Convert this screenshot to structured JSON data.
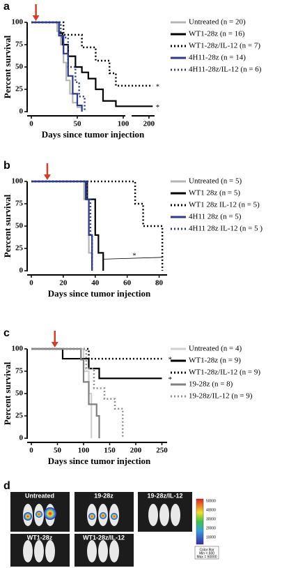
{
  "chart_data": [
    {
      "type": "line",
      "panel": "a",
      "xlabel": "Days since tumor injection",
      "ylabel": "Percent survival",
      "xlim": [
        0,
        230
      ],
      "axis_break": 100,
      "xticks": [
        0,
        50,
        100,
        200
      ],
      "ylim": [
        0,
        100
      ],
      "yticks": [
        0,
        25,
        50,
        75,
        100
      ],
      "arrow": {
        "x": 5,
        "color": "#d0402b"
      },
      "series": [
        {
          "name": "Untreated  (n = 20)",
          "color": "#b5b5b5",
          "dash": false,
          "x": [
            0,
            28,
            28,
            32,
            32,
            35,
            35,
            38,
            38,
            42,
            42,
            45,
            45,
            50,
            50,
            55,
            55
          ],
          "values": [
            100,
            100,
            90,
            90,
            75,
            75,
            55,
            55,
            35,
            35,
            20,
            20,
            10,
            10,
            5,
            5,
            0
          ]
        },
        {
          "name": "WT1-28z  (n = 16)",
          "color": "#000000",
          "dash": false,
          "x": [
            0,
            30,
            30,
            34,
            34,
            40,
            40,
            48,
            48,
            55,
            55,
            62,
            62,
            70,
            70,
            78,
            78,
            92,
            92,
            220
          ],
          "values": [
            100,
            100,
            88,
            88,
            75,
            75,
            62,
            62,
            50,
            50,
            44,
            44,
            37,
            37,
            25,
            25,
            12,
            12,
            6,
            6
          ]
        },
        {
          "name": "WT1-28z/IL-12  (n = 7)",
          "color": "#000000",
          "dash": true,
          "x": [
            0,
            35,
            35,
            55,
            55,
            70,
            70,
            85,
            85,
            92,
            92,
            220
          ],
          "values": [
            100,
            100,
            86,
            86,
            72,
            72,
            57,
            57,
            43,
            43,
            29,
            29
          ]
        },
        {
          "name": "4H11-28z  (n = 14)",
          "color": "#2b3a8c",
          "dash": false,
          "x": [
            0,
            30,
            30,
            35,
            35,
            40,
            40,
            45,
            45,
            50,
            50,
            55,
            55
          ],
          "values": [
            100,
            100,
            85,
            85,
            65,
            65,
            40,
            40,
            20,
            20,
            7,
            7,
            0
          ]
        },
        {
          "name": "4H11-28z/IL-12  (n = 6)",
          "color": "#2b3a8c",
          "dash": true,
          "x": [
            0,
            32,
            32,
            40,
            40,
            48,
            48,
            52,
            52,
            58,
            58
          ],
          "values": [
            100,
            100,
            83,
            83,
            50,
            50,
            33,
            33,
            17,
            17,
            0
          ]
        }
      ],
      "annotations": [
        {
          "text": "*",
          "x": 225,
          "y": 29
        },
        {
          "text": "*",
          "x": 225,
          "y": 6
        }
      ]
    },
    {
      "type": "line",
      "panel": "b",
      "xlabel": "Days since tumor injection",
      "ylabel": "Percent survival",
      "xlim": [
        0,
        85
      ],
      "xticks": [
        0,
        20,
        40,
        60,
        80
      ],
      "ylim": [
        0,
        100
      ],
      "yticks": [
        0,
        25,
        50,
        75,
        100
      ],
      "arrow": {
        "x": 10,
        "color": "#d0402b"
      },
      "series": [
        {
          "name": "Untreated  (n = 5)",
          "color": "#b5b5b5",
          "dash": false,
          "x": [
            0,
            33,
            33,
            36,
            36,
            38,
            38
          ],
          "values": [
            100,
            100,
            80,
            80,
            20,
            20,
            0
          ]
        },
        {
          "name": "WT1 28z  (n = 5)",
          "color": "#000000",
          "dash": false,
          "x": [
            0,
            35,
            35,
            40,
            40,
            42,
            42,
            45,
            45
          ],
          "values": [
            100,
            100,
            80,
            80,
            40,
            40,
            20,
            20,
            0
          ]
        },
        {
          "name": "WT1 28z IL-12  (n = 5)",
          "color": "#000000",
          "dash": true,
          "x": [
            0,
            65,
            65,
            70,
            70,
            82,
            82
          ],
          "values": [
            100,
            100,
            75,
            75,
            50,
            50,
            0
          ]
        },
        {
          "name": "4H11 28z  (n = 5)",
          "color": "#2b3a8c",
          "dash": false,
          "x": [
            0,
            34,
            34,
            36,
            36,
            38,
            38
          ],
          "values": [
            100,
            100,
            80,
            80,
            40,
            40,
            0
          ]
        },
        {
          "name": "4H11 28z IL-12  (n = 5 )",
          "color": "#2b3a8c",
          "dash": true,
          "x": [
            0,
            35,
            35,
            37,
            37,
            38,
            38
          ],
          "values": [
            100,
            100,
            80,
            80,
            40,
            40,
            0
          ]
        }
      ],
      "annotations": [
        {
          "text": "*",
          "x": 62,
          "y": 18
        }
      ]
    },
    {
      "type": "line",
      "panel": "c",
      "xlabel": "Days since tumor injection",
      "ylabel": "Percent survival",
      "xlim": [
        0,
        260
      ],
      "xticks": [
        0,
        50,
        100,
        150,
        200,
        250
      ],
      "ylim": [
        0,
        100
      ],
      "yticks": [
        0,
        25,
        50,
        75,
        100
      ],
      "arrow": {
        "x": 45,
        "color": "#d0402b"
      },
      "series": [
        {
          "name": "Untreated  (n = 4)",
          "color": "#cfcfcf",
          "dash": false,
          "x": [
            0,
            100,
            100,
            110,
            110,
            115,
            115
          ],
          "values": [
            100,
            100,
            75,
            75,
            50,
            50,
            0
          ]
        },
        {
          "name": "WT1-28z  (n = 9)",
          "color": "#000000",
          "dash": false,
          "x": [
            0,
            60,
            60,
            110,
            110,
            130,
            130,
            250
          ],
          "values": [
            100,
            100,
            89,
            89,
            78,
            78,
            67,
            67
          ]
        },
        {
          "name": "WT1-28z/IL-12  (n = 9)",
          "color": "#000000",
          "dash": true,
          "x": [
            0,
            110,
            110,
            250
          ],
          "values": [
            100,
            100,
            89,
            89
          ]
        },
        {
          "name": "19-28z  (n = 8)",
          "color": "#808080",
          "dash": false,
          "x": [
            0,
            95,
            95,
            100,
            100,
            110,
            110,
            125,
            125,
            130,
            130
          ],
          "values": [
            100,
            100,
            88,
            88,
            63,
            63,
            38,
            38,
            25,
            25,
            0
          ]
        },
        {
          "name": "19-28z/IL-12  (n = 9)",
          "color": "#909090",
          "dash": true,
          "x": [
            0,
            105,
            105,
            120,
            120,
            140,
            140,
            160,
            160,
            175,
            175
          ],
          "values": [
            100,
            100,
            78,
            78,
            56,
            56,
            44,
            44,
            33,
            33,
            0
          ]
        }
      ],
      "annotations": [
        {
          "text": "*",
          "x": 258,
          "y": 89
        },
        {
          "text": "*",
          "x": 258,
          "y": 67
        }
      ]
    }
  ],
  "panel_d": {
    "letter": "d",
    "labels": [
      "Untreated",
      "19-28z",
      "19-28z/IL-12",
      "WT1-28z",
      "WT1-28z/IL-12"
    ],
    "colorbar": [
      "50000",
      "40000",
      "30000",
      "20000",
      "10000"
    ],
    "colorbar_box": [
      "Color Bar",
      "Min = 600",
      "Max = 50000"
    ]
  }
}
